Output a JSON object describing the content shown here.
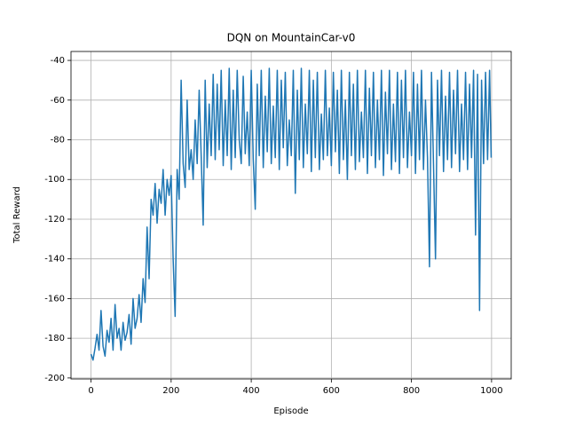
{
  "chart_data": {
    "type": "line",
    "title": "DQN on MountainCar-v0",
    "x_label": "Episode",
    "y_label": "Total Reward",
    "xlim": [
      -50,
      1049
    ],
    "ylim": [
      -200.5,
      -35.5
    ],
    "xticks": [
      0,
      200,
      400,
      600,
      800,
      1000
    ],
    "yticks": [
      -200,
      -180,
      -160,
      -140,
      -120,
      -100,
      -80,
      -60,
      -40
    ],
    "grid": true,
    "x": [
      0,
      5,
      10,
      15,
      20,
      25,
      30,
      35,
      40,
      45,
      50,
      55,
      60,
      65,
      70,
      75,
      80,
      85,
      90,
      95,
      100,
      105,
      110,
      115,
      120,
      125,
      130,
      135,
      140,
      145,
      150,
      155,
      160,
      165,
      170,
      175,
      180,
      185,
      190,
      195,
      200,
      205,
      210,
      215,
      220,
      225,
      230,
      235,
      240,
      245,
      250,
      255,
      260,
      265,
      270,
      275,
      280,
      285,
      290,
      295,
      300,
      305,
      310,
      315,
      320,
      325,
      330,
      335,
      340,
      345,
      350,
      355,
      360,
      365,
      370,
      375,
      380,
      385,
      390,
      395,
      400,
      405,
      410,
      415,
      420,
      425,
      430,
      435,
      440,
      445,
      450,
      455,
      460,
      465,
      470,
      475,
      480,
      485,
      490,
      495,
      500,
      505,
      510,
      515,
      520,
      525,
      530,
      535,
      540,
      545,
      550,
      555,
      560,
      565,
      570,
      575,
      580,
      585,
      590,
      595,
      600,
      605,
      610,
      615,
      620,
      625,
      630,
      635,
      640,
      645,
      650,
      655,
      660,
      665,
      670,
      675,
      680,
      685,
      690,
      695,
      700,
      705,
      710,
      715,
      720,
      725,
      730,
      735,
      740,
      745,
      750,
      755,
      760,
      765,
      770,
      775,
      780,
      785,
      790,
      795,
      800,
      805,
      810,
      815,
      820,
      825,
      830,
      835,
      840,
      845,
      850,
      855,
      860,
      865,
      870,
      875,
      880,
      885,
      890,
      895,
      900,
      905,
      910,
      915,
      920,
      925,
      930,
      935,
      940,
      945,
      950,
      955,
      960,
      965,
      970,
      975,
      980,
      985,
      990,
      995,
      999
    ],
    "series": [
      {
        "name": "Total Reward",
        "color": "#1f77b4",
        "values": [
          -188,
          -191,
          -185,
          -178,
          -186,
          -166,
          -184,
          -189,
          -176,
          -182,
          -170,
          -186,
          -163,
          -180,
          -175,
          -186,
          -172,
          -181,
          -177,
          -168,
          -183,
          -160,
          -175,
          -170,
          -158,
          -172,
          -150,
          -162,
          -124,
          -150,
          -110,
          -118,
          -102,
          -122,
          -105,
          -112,
          -95,
          -118,
          -100,
          -108,
          -98,
          -140,
          -169,
          -95,
          -110,
          -50,
          -92,
          -104,
          -60,
          -95,
          -85,
          -100,
          -70,
          -92,
          -55,
          -88,
          -123,
          -50,
          -94,
          -62,
          -88,
          -47,
          -90,
          -52,
          -85,
          -45,
          -93,
          -60,
          -88,
          -44,
          -95,
          -55,
          -89,
          -45,
          -80,
          -92,
          -48,
          -87,
          -66,
          -93,
          -45,
          -90,
          -115,
          -52,
          -88,
          -45,
          -94,
          -58,
          -86,
          -44,
          -92,
          -63,
          -89,
          -45,
          -95,
          -50,
          -84,
          -46,
          -93,
          -70,
          -88,
          -45,
          -107,
          -55,
          -90,
          -44,
          -94,
          -62,
          -87,
          -45,
          -96,
          -50,
          -89,
          -46,
          -95,
          -67,
          -90,
          -45,
          -88,
          -64,
          -93,
          -46,
          -86,
          -55,
          -97,
          -45,
          -90,
          -60,
          -100,
          -46,
          -88,
          -52,
          -95,
          -45,
          -91,
          -66,
          -89,
          -45,
          -97,
          -54,
          -88,
          -46,
          -94,
          -60,
          -90,
          -45,
          -98,
          -56,
          -87,
          -45,
          -95,
          -62,
          -91,
          -46,
          -97,
          -50,
          -89,
          -45,
          -94,
          -66,
          -88,
          -46,
          -97,
          -52,
          -90,
          -45,
          -95,
          -60,
          -89,
          -144,
          -46,
          -92,
          -140,
          -50,
          -88,
          -45,
          -96,
          -58,
          -90,
          -46,
          -94,
          -55,
          -87,
          -45,
          -96,
          -62,
          -90,
          -46,
          -95,
          -52,
          -89,
          -45,
          -128,
          -47,
          -166,
          -50,
          -92,
          -46,
          -90,
          -45,
          -89
        ]
      }
    ]
  }
}
